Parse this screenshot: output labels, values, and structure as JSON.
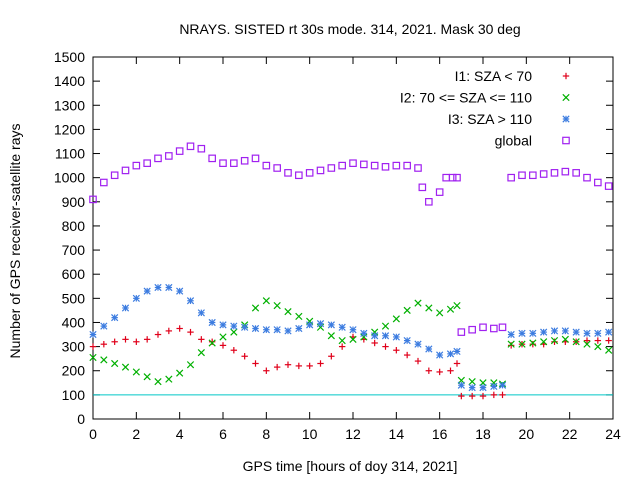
{
  "chart_data": {
    "type": "scatter",
    "title": "NRAYS. SISTED rt 30s mode. 314, 2021. Mask 30 deg",
    "xlabel": "GPS time [hours of doy 314, 2021]",
    "ylabel": "Number of GPS receiver-satellite rays",
    "xlim": [
      0,
      24
    ],
    "ylim": [
      0,
      1500
    ],
    "xticks": [
      0,
      2,
      4,
      6,
      8,
      10,
      12,
      14,
      16,
      18,
      20,
      22,
      24
    ],
    "yticks": [
      0,
      100,
      200,
      300,
      400,
      500,
      600,
      700,
      800,
      900,
      1000,
      1100,
      1200,
      1300,
      1400,
      1500
    ],
    "reference_line": {
      "y": 100,
      "color": "#00c8c8"
    },
    "legend_position": "top-right",
    "series": [
      {
        "name": "I1: SZA < 70",
        "marker": "plus",
        "color": "#e0001a",
        "x": [
          0,
          0.5,
          1,
          1.5,
          2,
          2.5,
          3,
          3.5,
          4,
          4.5,
          5,
          5.5,
          6,
          6.5,
          7,
          7.5,
          8,
          8.5,
          9,
          9.5,
          10,
          10.5,
          11,
          11.5,
          12,
          12.5,
          13,
          13.5,
          14,
          14.5,
          15,
          15.5,
          16,
          16.5,
          16.8,
          17,
          17.5,
          18,
          18.5,
          18.9,
          19.3,
          19.8,
          20.3,
          20.8,
          21.3,
          21.8,
          22.3,
          22.8,
          23.3,
          23.8
        ],
        "y": [
          300,
          310,
          320,
          330,
          320,
          330,
          350,
          365,
          375,
          360,
          330,
          320,
          305,
          285,
          260,
          230,
          200,
          215,
          225,
          220,
          220,
          230,
          260,
          300,
          340,
          330,
          315,
          300,
          285,
          265,
          240,
          200,
          195,
          200,
          230,
          95,
          95,
          95,
          100,
          100,
          305,
          310,
          310,
          310,
          320,
          320,
          320,
          325,
          325,
          325
        ]
      },
      {
        "name": "I2: 70 <= SZA <= 110",
        "marker": "cross",
        "color": "#00b000",
        "x": [
          0,
          0.5,
          1,
          1.5,
          2,
          2.5,
          3,
          3.5,
          4,
          4.5,
          5,
          5.5,
          6,
          6.5,
          7,
          7.5,
          8,
          8.5,
          9,
          9.5,
          10,
          10.5,
          11,
          11.5,
          12,
          12.5,
          13,
          13.5,
          14,
          14.5,
          15,
          15.5,
          16,
          16.5,
          16.8,
          17,
          17.5,
          18,
          18.5,
          18.9,
          19.3,
          19.8,
          20.3,
          20.8,
          21.3,
          21.8,
          22.3,
          22.8,
          23.3,
          23.8
        ],
        "y": [
          255,
          245,
          230,
          215,
          195,
          175,
          155,
          165,
          190,
          225,
          275,
          315,
          340,
          360,
          390,
          460,
          490,
          470,
          445,
          425,
          405,
          380,
          345,
          325,
          330,
          340,
          360,
          385,
          415,
          450,
          480,
          460,
          440,
          455,
          470,
          160,
          155,
          150,
          150,
          145,
          310,
          310,
          315,
          320,
          325,
          330,
          320,
          310,
          300,
          285
        ]
      },
      {
        "name": "I3: SZA > 110",
        "marker": "star",
        "color": "#3c7ce0",
        "x": [
          0,
          0.5,
          1,
          1.5,
          2,
          2.5,
          3,
          3.5,
          4,
          4.5,
          5,
          5.5,
          6,
          6.5,
          7,
          7.5,
          8,
          8.5,
          9,
          9.5,
          10,
          10.5,
          11,
          11.5,
          12,
          12.5,
          13,
          13.5,
          14,
          14.5,
          15,
          15.5,
          16,
          16.5,
          16.8,
          17,
          17.5,
          18,
          18.5,
          18.9,
          19.3,
          19.8,
          20.3,
          20.8,
          21.3,
          21.8,
          22.3,
          22.8,
          23.3,
          23.8
        ],
        "y": [
          350,
          385,
          420,
          460,
          500,
          530,
          545,
          545,
          530,
          490,
          440,
          400,
          390,
          385,
          380,
          375,
          370,
          370,
          365,
          375,
          390,
          395,
          390,
          380,
          370,
          355,
          345,
          345,
          340,
          325,
          310,
          290,
          265,
          270,
          280,
          140,
          130,
          130,
          135,
          140,
          350,
          355,
          355,
          360,
          365,
          365,
          360,
          355,
          355,
          360
        ]
      },
      {
        "name": "global",
        "marker": "square",
        "color": "#a020f0",
        "x": [
          0,
          0.5,
          1,
          1.5,
          2,
          2.5,
          3,
          3.5,
          4,
          4.5,
          5,
          5.5,
          6,
          6.5,
          7,
          7.5,
          8,
          8.5,
          9,
          9.5,
          10,
          10.5,
          11,
          11.5,
          12,
          12.5,
          13,
          13.5,
          14,
          14.5,
          15,
          15.2,
          15.5,
          16,
          16.3,
          16.6,
          16.8,
          17,
          17.5,
          18,
          18.5,
          18.9,
          19.3,
          19.8,
          20.3,
          20.8,
          21.3,
          21.8,
          22.3,
          22.8,
          23.3,
          23.8
        ],
        "y": [
          910,
          980,
          1010,
          1030,
          1050,
          1060,
          1080,
          1090,
          1110,
          1130,
          1120,
          1080,
          1060,
          1060,
          1070,
          1080,
          1050,
          1040,
          1020,
          1010,
          1020,
          1030,
          1040,
          1050,
          1060,
          1055,
          1050,
          1045,
          1050,
          1050,
          1040,
          960,
          900,
          940,
          1000,
          1000,
          1000,
          360,
          370,
          380,
          375,
          380,
          1000,
          1010,
          1010,
          1015,
          1020,
          1025,
          1020,
          1000,
          980,
          965
        ]
      }
    ]
  }
}
